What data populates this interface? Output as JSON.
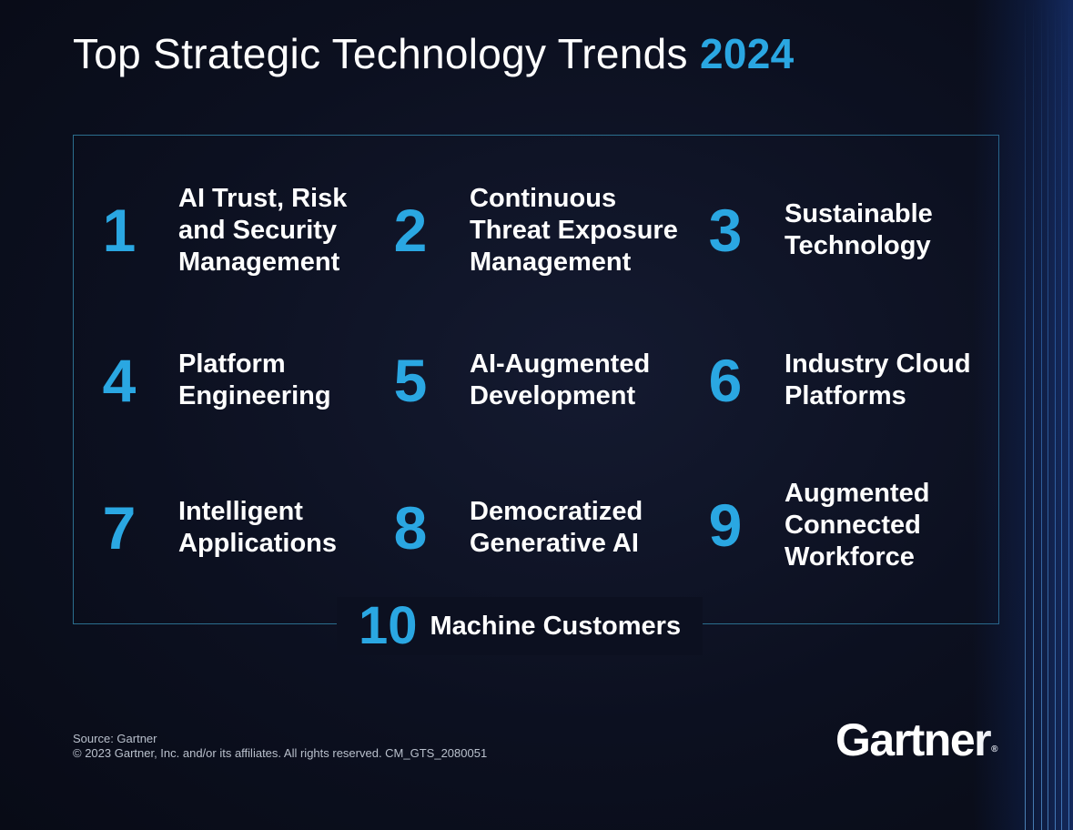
{
  "title": {
    "text": "Top Strategic Technology Trends ",
    "year": "2024"
  },
  "trends": [
    {
      "number": "1",
      "label": "AI Trust, Risk\nand Security\nManagement"
    },
    {
      "number": "2",
      "label": "Continuous\nThreat Exposure\nManagement"
    },
    {
      "number": "3",
      "label": "Sustainable\nTechnology"
    },
    {
      "number": "4",
      "label": "Platform\nEngineering"
    },
    {
      "number": "5",
      "label": "AI-Augmented\nDevelopment"
    },
    {
      "number": "6",
      "label": "Industry Cloud\nPlatforms"
    },
    {
      "number": "7",
      "label": "Intelligent\nApplications"
    },
    {
      "number": "8",
      "label": "Democratized\nGenerative AI"
    },
    {
      "number": "9",
      "label": "Augmented\nConnected\nWorkforce"
    },
    {
      "number": "10",
      "label": "Machine Customers"
    }
  ],
  "footer": {
    "source": "Source: Gartner",
    "copyright": "© 2023 Gartner, Inc. and/or its affiliates. All rights reserved. CM_GTS_2080051"
  },
  "logo": {
    "text": "Gartner",
    "mark": "®"
  },
  "colors": {
    "accent": "#2aa7e2",
    "background": "#0b0f1c",
    "frame": "#2b6e8e",
    "text": "#ffffff"
  }
}
